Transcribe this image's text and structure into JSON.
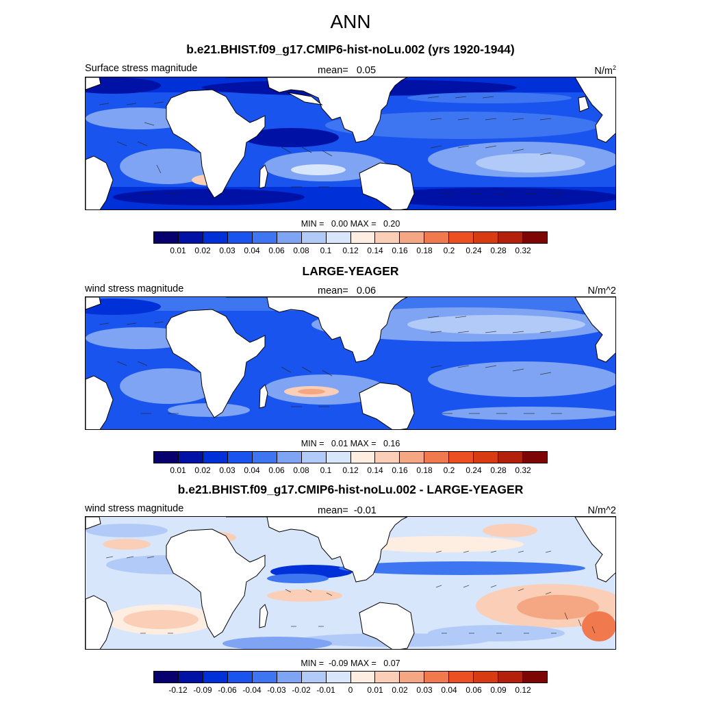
{
  "title": "ANN",
  "colors": [
    "#08006e",
    "#0012a5",
    "#0030d8",
    "#1a54ee",
    "#3d76f0",
    "#7ea4f3",
    "#b1caf7",
    "#d7e6fb",
    "#feeee2",
    "#fbcfb7",
    "#f5a783",
    "#f07a4e",
    "#ec4f22",
    "#d83a12",
    "#b3200c",
    "#7d0503"
  ],
  "panels": [
    {
      "title": "b.e21.BHIST.f09_g17.CMIP6-hist-noLu.002 (yrs 1920-1944)",
      "left_label": "Surface stress magnitude",
      "mean_label": "mean=",
      "mean_value": "0.05",
      "units_base": "N/m",
      "units_sup": "2",
      "min_label": "MIN =",
      "min_value": "0.00",
      "max_label": "MAX =",
      "max_value": "0.20",
      "ticks": [
        "0.01",
        "0.02",
        "0.03",
        "0.04",
        "0.06",
        "0.08",
        "0.1",
        "0.12",
        "0.14",
        "0.16",
        "0.18",
        "0.2",
        "0.24",
        "0.28",
        "0.32"
      ]
    },
    {
      "title": "LARGE-YEAGER",
      "left_label": "wind stress magnitude",
      "mean_label": "mean=",
      "mean_value": "0.06",
      "units": "N/m^2",
      "min_label": "MIN =",
      "min_value": "0.01",
      "max_label": "MAX =",
      "max_value": "0.16",
      "ticks": [
        "0.01",
        "0.02",
        "0.03",
        "0.04",
        "0.06",
        "0.08",
        "0.1",
        "0.12",
        "0.14",
        "0.16",
        "0.18",
        "0.2",
        "0.24",
        "0.28",
        "0.32"
      ]
    },
    {
      "title": "b.e21.BHIST.f09_g17.CMIP6-hist-noLu.002 - LARGE-YEAGER",
      "left_label": "wind stress magnitude",
      "mean_label": "mean=",
      "mean_value": "-0.01",
      "units": "N/m^2",
      "min_label": "MIN =",
      "min_value": "-0.09",
      "max_label": "MAX =",
      "max_value": "0.07",
      "ticks": [
        "-0.12",
        "-0.09",
        "-0.06",
        "-0.04",
        "-0.03",
        "-0.02",
        "-0.01",
        "0",
        "0.01",
        "0.02",
        "0.03",
        "0.04",
        "0.06",
        "0.09",
        "0.12"
      ]
    }
  ]
}
